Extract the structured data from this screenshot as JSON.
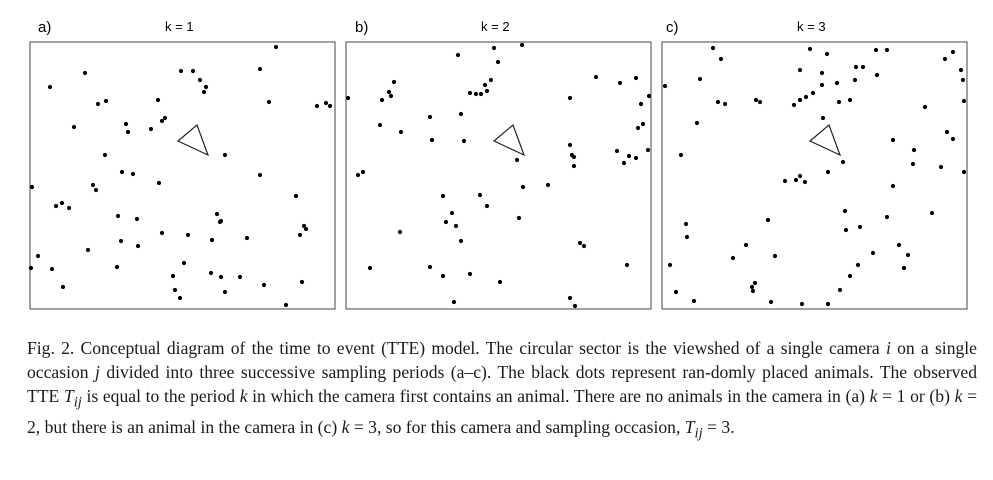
{
  "figure": {
    "panels": [
      {
        "letter": "a)",
        "k_label": "k = 1",
        "dots": [
          [
            50,
            87
          ],
          [
            85,
            73
          ],
          [
            181,
            71
          ],
          [
            193,
            71
          ],
          [
            200,
            80
          ],
          [
            206,
            87
          ],
          [
            204,
            92
          ],
          [
            260,
            69
          ],
          [
            276,
            47
          ],
          [
            158,
            100
          ],
          [
            98,
            104
          ],
          [
            106,
            101
          ],
          [
            74,
            127
          ],
          [
            126,
            124
          ],
          [
            128,
            132
          ],
          [
            151,
            129
          ],
          [
            162,
            121
          ],
          [
            165,
            118
          ],
          [
            269,
            102
          ],
          [
            317,
            106
          ],
          [
            326,
            103
          ],
          [
            330,
            106
          ],
          [
            225,
            155
          ],
          [
            260,
            175
          ],
          [
            105,
            155
          ],
          [
            122,
            172
          ],
          [
            133,
            174
          ],
          [
            159,
            183
          ],
          [
            93,
            185
          ],
          [
            96,
            190
          ],
          [
            296,
            196
          ],
          [
            32,
            187
          ],
          [
            56,
            206
          ],
          [
            62,
            203
          ],
          [
            69,
            208
          ],
          [
            118,
            216
          ],
          [
            121,
            241
          ],
          [
            137,
            219
          ],
          [
            138,
            246
          ],
          [
            88,
            250
          ],
          [
            162,
            233
          ],
          [
            188,
            235
          ],
          [
            217,
            214
          ],
          [
            220,
            222
          ],
          [
            212,
            240
          ],
          [
            221,
            221
          ],
          [
            247,
            238
          ],
          [
            304,
            226
          ],
          [
            300,
            235
          ],
          [
            306,
            229
          ],
          [
            31,
            268
          ],
          [
            38,
            256
          ],
          [
            52,
            269
          ],
          [
            63,
            287
          ],
          [
            117,
            267
          ],
          [
            173,
            276
          ],
          [
            184,
            263
          ],
          [
            175,
            290
          ],
          [
            180,
            298
          ],
          [
            211,
            273
          ],
          [
            221,
            277
          ],
          [
            225,
            292
          ],
          [
            240,
            277
          ],
          [
            264,
            285
          ],
          [
            286,
            305
          ],
          [
            302,
            282
          ]
        ]
      },
      {
        "letter": "b)",
        "k_label": "k = 2",
        "dots": [
          [
            348,
            98
          ],
          [
            458,
            55
          ],
          [
            494,
            48
          ],
          [
            522,
            45
          ],
          [
            498,
            62
          ],
          [
            491,
            80
          ],
          [
            485,
            85
          ],
          [
            470,
            93
          ],
          [
            476,
            94
          ],
          [
            481,
            94
          ],
          [
            487,
            91
          ],
          [
            382,
            100
          ],
          [
            389,
            92
          ],
          [
            394,
            82
          ],
          [
            391,
            96
          ],
          [
            380,
            125
          ],
          [
            401,
            132
          ],
          [
            430,
            117
          ],
          [
            461,
            114
          ],
          [
            432,
            140
          ],
          [
            464,
            141
          ],
          [
            517,
            160
          ],
          [
            570,
            98
          ],
          [
            596,
            77
          ],
          [
            620,
            83
          ],
          [
            636,
            78
          ],
          [
            641,
            104
          ],
          [
            649,
            96
          ],
          [
            643,
            124
          ],
          [
            638,
            128
          ],
          [
            648,
            150
          ],
          [
            636,
            158
          ],
          [
            617,
            151
          ],
          [
            629,
            156
          ],
          [
            624,
            163
          ],
          [
            570,
            145
          ],
          [
            572,
            155
          ],
          [
            574,
            157
          ],
          [
            574,
            166
          ],
          [
            358,
            175
          ],
          [
            363,
            172
          ],
          [
            548,
            185
          ],
          [
            523,
            187
          ],
          [
            480,
            195
          ],
          [
            487,
            206
          ],
          [
            443,
            196
          ],
          [
            452,
            213
          ],
          [
            446,
            222
          ],
          [
            456,
            226
          ],
          [
            519,
            218
          ],
          [
            400,
            232
          ],
          [
            461,
            241
          ],
          [
            584,
            246
          ],
          [
            580,
            243
          ],
          [
            370,
            268
          ],
          [
            430,
            267
          ],
          [
            443,
            276
          ],
          [
            470,
            274
          ],
          [
            500,
            282
          ],
          [
            454,
            302
          ],
          [
            570,
            298
          ],
          [
            575,
            306
          ],
          [
            627,
            265
          ]
        ]
      },
      {
        "letter": "c)",
        "k_label": "k = 3",
        "dots": [
          [
            665,
            86
          ],
          [
            713,
            48
          ],
          [
            721,
            59
          ],
          [
            700,
            79
          ],
          [
            718,
            102
          ],
          [
            725,
            104
          ],
          [
            756,
            100
          ],
          [
            760,
            102
          ],
          [
            810,
            49
          ],
          [
            800,
            70
          ],
          [
            827,
            54
          ],
          [
            822,
            73
          ],
          [
            822,
            85
          ],
          [
            813,
            93
          ],
          [
            806,
            97
          ],
          [
            800,
            100
          ],
          [
            794,
            105
          ],
          [
            837,
            83
          ],
          [
            839,
            102
          ],
          [
            850,
            100
          ],
          [
            855,
            80
          ],
          [
            856,
            67
          ],
          [
            863,
            67
          ],
          [
            876,
            50
          ],
          [
            887,
            50
          ],
          [
            877,
            75
          ],
          [
            945,
            59
          ],
          [
            953,
            52
          ],
          [
            961,
            70
          ],
          [
            963,
            80
          ],
          [
            925,
            107
          ],
          [
            964,
            101
          ],
          [
            947,
            132
          ],
          [
            953,
            139
          ],
          [
            893,
            140
          ],
          [
            914,
            150
          ],
          [
            913,
            164
          ],
          [
            941,
            167
          ],
          [
            964,
            172
          ],
          [
            823,
            118
          ],
          [
            843,
            162
          ],
          [
            828,
            172
          ],
          [
            681,
            155
          ],
          [
            697,
            123
          ],
          [
            785,
            181
          ],
          [
            796,
            180
          ],
          [
            800,
            176
          ],
          [
            893,
            186
          ],
          [
            805,
            182
          ],
          [
            845,
            211
          ],
          [
            860,
            227
          ],
          [
            846,
            230
          ],
          [
            887,
            217
          ],
          [
            932,
            213
          ],
          [
            899,
            245
          ],
          [
            908,
            255
          ],
          [
            904,
            268
          ],
          [
            768,
            220
          ],
          [
            746,
            245
          ],
          [
            775,
            256
          ],
          [
            686,
            224
          ],
          [
            687,
            237
          ],
          [
            670,
            265
          ],
          [
            733,
            258
          ],
          [
            755,
            283
          ],
          [
            752,
            287
          ],
          [
            753,
            291
          ],
          [
            858,
            265
          ],
          [
            873,
            253
          ],
          [
            850,
            276
          ],
          [
            840,
            290
          ],
          [
            676,
            292
          ],
          [
            694,
            301
          ],
          [
            771,
            302
          ],
          [
            802,
            304
          ],
          [
            828,
            304
          ]
        ]
      }
    ]
  },
  "caption": {
    "fig_label": "Fig. 2.",
    "s1": "Conceptual diagram of the time to event (TTE) model. The circular sector is the viewshed of a single camera ",
    "var_i": "i",
    "s2": " on a single occasion ",
    "var_j": "j",
    "s3": " divided into three successive sampling periods (a–c). The black dots represent ran-domly placed animals. The observed TTE ",
    "var_T": "T",
    "var_sub": "ij",
    "s4": " is equal to the period ",
    "var_k": "k",
    "s5": " in which the camera first contains an animal. There are no animals in the camera in (a) ",
    "var_k2": "k",
    "s6": " = 1 or (b) ",
    "var_k3": "k",
    "s7": " = 2, but there is an animal in the camera in (c) ",
    "var_k4": "k",
    "s8": " = 3, so for this camera and sampling occasion, ",
    "var_T2": "T",
    "var_sub2": "ij",
    "s9": " = 3."
  }
}
